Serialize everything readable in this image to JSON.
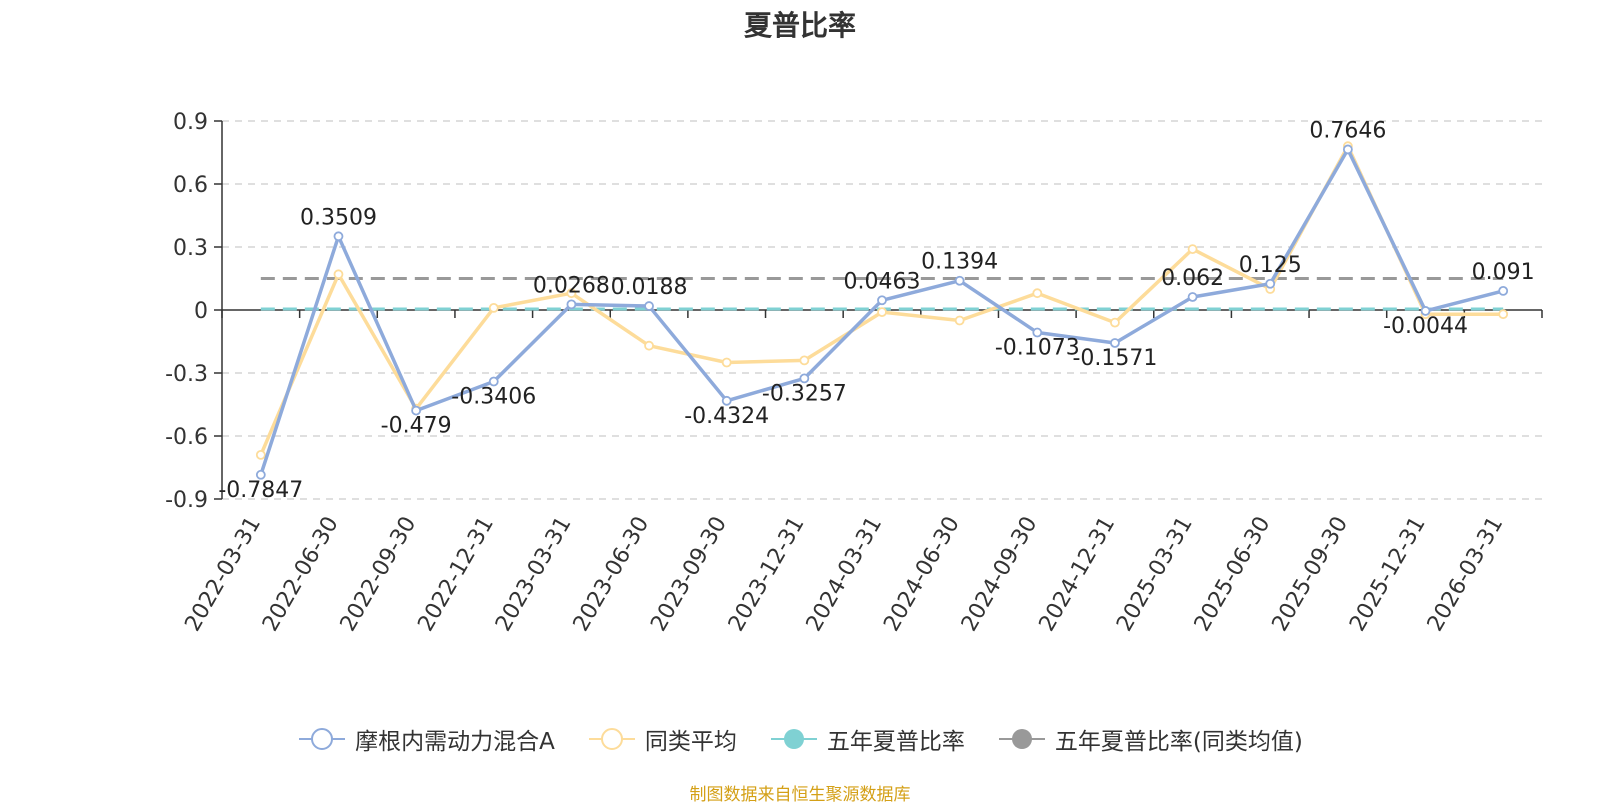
{
  "chart_data": {
    "type": "line",
    "title": "夏普比率",
    "categories": [
      "2022-03-31",
      "2022-06-30",
      "2022-09-30",
      "2022-12-31",
      "2023-03-31",
      "2023-06-30",
      "2023-09-30",
      "2023-12-31",
      "2024-03-31",
      "2024-06-30",
      "2024-09-30",
      "2024-12-31",
      "2025-03-31",
      "2025-06-30",
      "2025-09-30",
      "2025-12-31",
      "2026-03-31"
    ],
    "y_ticks": [
      "0.9",
      "0.6",
      "0.3",
      "0",
      "-0.3",
      "-0.6",
      "-0.9"
    ],
    "ylim": [
      -0.9,
      0.9
    ],
    "grid": true,
    "legend_position": "bottom",
    "series": [
      {
        "name": "摩根内需动力混合A",
        "color": "#8eaadb",
        "marker": "hollow-circle",
        "values": [
          -0.7847,
          0.3509,
          -0.479,
          -0.3406,
          0.0268,
          0.0188,
          -0.4324,
          -0.3257,
          0.0463,
          0.1394,
          -0.1073,
          -0.1571,
          0.062,
          0.125,
          0.7646,
          -0.0044,
          0.091
        ],
        "labels": [
          "-0.7847",
          "0.3509",
          "-0.479",
          "-0.3406",
          "0.0268",
          "0.0188",
          "-0.4324",
          "-0.3257",
          "0.0463",
          "0.1394",
          "-0.1073",
          "-0.1571",
          "0.062",
          "0.125",
          "0.7646",
          "-0.0044",
          "0.091"
        ]
      },
      {
        "name": "同类平均",
        "color": "#fddc9a",
        "marker": "hollow-circle",
        "values": [
          -0.69,
          0.17,
          -0.47,
          0.01,
          0.08,
          -0.17,
          -0.25,
          -0.24,
          -0.01,
          -0.05,
          0.08,
          -0.06,
          0.29,
          0.1,
          0.78,
          -0.02,
          -0.02
        ]
      },
      {
        "name": "五年夏普比率",
        "color": "#7fd1d3",
        "marker": "filled-circle",
        "style": "dashed",
        "constant": 0.005
      },
      {
        "name": "五年夏普比率(同类均值)",
        "color": "#999999",
        "marker": "filled-circle",
        "style": "dashed",
        "constant": 0.15
      }
    ]
  },
  "source_note": "制图数据来自恒生聚源数据库"
}
